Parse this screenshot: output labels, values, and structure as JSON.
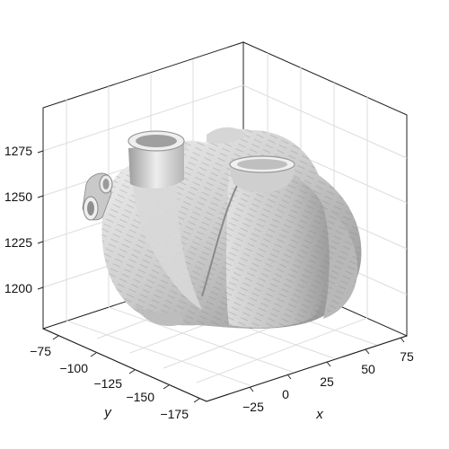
{
  "axes": {
    "z_ticks": [
      "1275",
      "1250",
      "1225",
      "1200"
    ],
    "y_ticks": [
      "−75",
      "−100",
      "−125",
      "−150",
      "−175"
    ],
    "x_ticks": [
      "−25",
      "0",
      "25",
      "50",
      "75"
    ],
    "x_label": "x",
    "y_label": "y"
  },
  "colors": {
    "surface_light": "#f2f2f2",
    "surface_mid": "#bdbdbd",
    "surface_dark": "#7d7d7d",
    "axis_line": "#222222",
    "grid_line": "#dddddd"
  }
}
